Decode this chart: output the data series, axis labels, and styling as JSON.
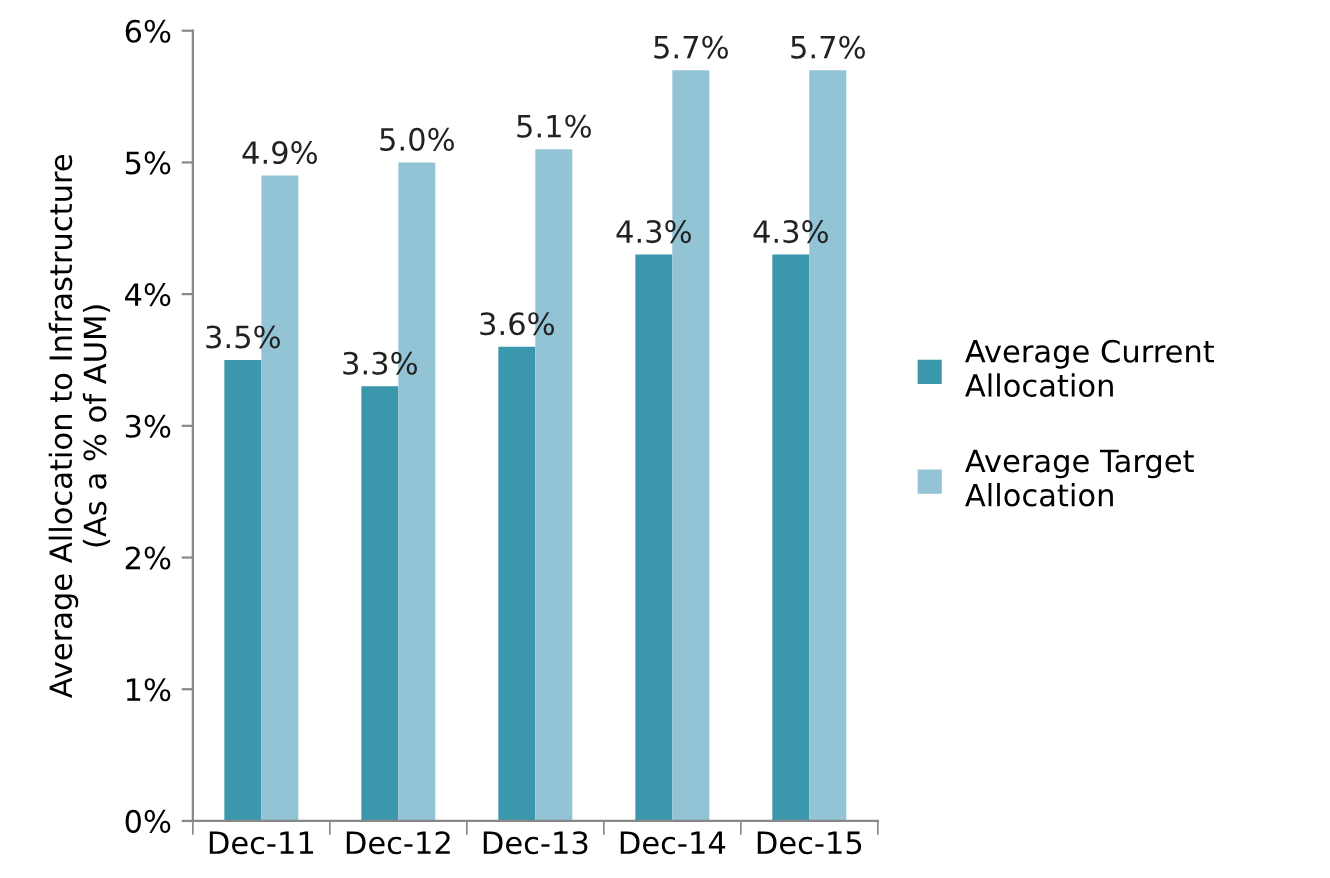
{
  "chart_data": {
    "type": "bar",
    "ylabel": "Average Allocation to Infrastructure\n(As a % of AUM)",
    "categories": [
      "Dec-11",
      "Dec-12",
      "Dec-13",
      "Dec-14",
      "Dec-15"
    ],
    "series": [
      {
        "name": "Average Current Allocation",
        "color": "#3b97ab",
        "values": [
          3.5,
          3.3,
          3.6,
          4.3,
          4.3
        ],
        "value_labels": [
          "3.5%",
          "3.3%",
          "3.6%",
          "4.3%",
          "4.3%"
        ]
      },
      {
        "name": "Average Target Allocation",
        "color": "#92c4d6",
        "values": [
          4.9,
          5.0,
          5.1,
          5.7,
          5.7
        ],
        "value_labels": [
          "4.9%",
          "5.0%",
          "5.1%",
          "5.7%",
          "5.7%"
        ]
      }
    ],
    "ylim": [
      0,
      6
    ],
    "yticks": [
      {
        "value": 0,
        "label": "0%"
      },
      {
        "value": 1,
        "label": "1%"
      },
      {
        "value": 2,
        "label": "2%"
      },
      {
        "value": 3,
        "label": "3%"
      },
      {
        "value": 4,
        "label": "4%"
      },
      {
        "value": 5,
        "label": "5%"
      },
      {
        "value": 6,
        "label": "6%"
      }
    ],
    "grid": false,
    "legend": "right"
  }
}
